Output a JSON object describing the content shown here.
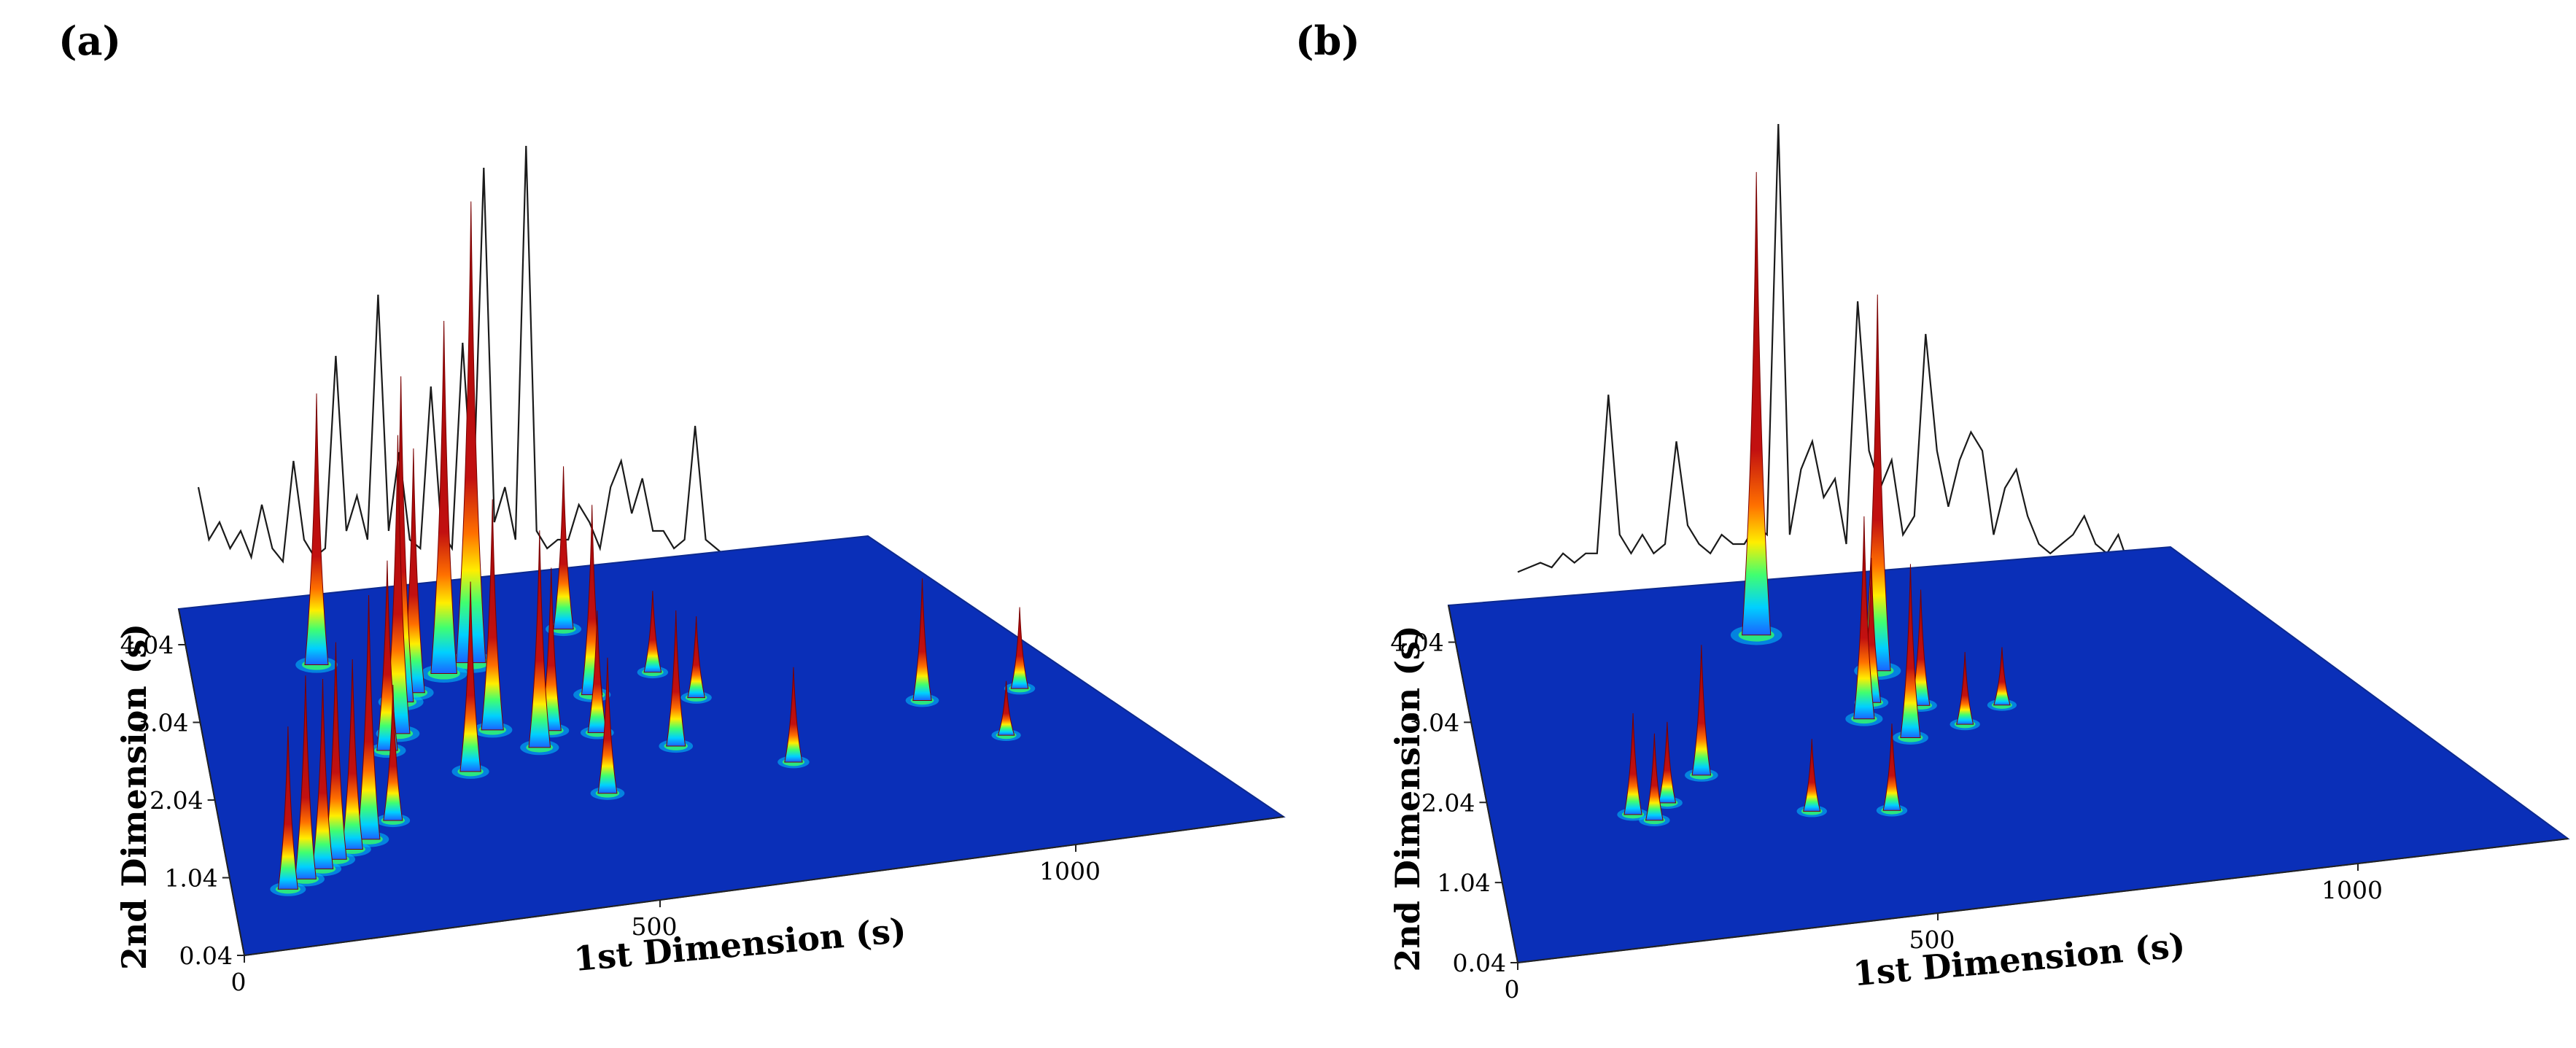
{
  "figure": {
    "panels": [
      {
        "label": "(a)"
      },
      {
        "label": "(b)"
      }
    ]
  },
  "colors": {
    "plane": "#0a2fb8",
    "plane_edge": "#0d2a8f",
    "peak": "#c21010",
    "ridge": "#d51818",
    "trace": "#1a1a1a"
  },
  "chart_data": [
    {
      "type": "surface3d",
      "panel": "(a)",
      "xlabel": "1st Dimension (s)",
      "ylabel": "2nd Dimension (s)",
      "x_ticks": [
        "0",
        "500",
        "1000"
      ],
      "x_tick_values": [
        0,
        500,
        1000
      ],
      "y_ticks": [
        "0.04",
        "1.04",
        "2.04",
        "3.04",
        "4.04"
      ],
      "y_tick_values": [
        0.04,
        1.04,
        2.04,
        3.04,
        4.04
      ],
      "xlim": [
        0,
        1250
      ],
      "ylim": [
        0.04,
        4.5
      ],
      "colormap": [
        "#0a2fb8",
        "#00c8ff",
        "#35ff6a",
        "#ffff00",
        "#ff7a00",
        "#c21010"
      ],
      "peaks": [
        {
          "x": 70,
          "y": 0.8,
          "h": 0.6
        },
        {
          "x": 95,
          "y": 0.9,
          "h": 0.75
        },
        {
          "x": 120,
          "y": 1.0,
          "h": 0.7
        },
        {
          "x": 140,
          "y": 1.1,
          "h": 0.8
        },
        {
          "x": 165,
          "y": 1.2,
          "h": 0.7
        },
        {
          "x": 190,
          "y": 1.3,
          "h": 0.9
        },
        {
          "x": 205,
          "y": 3.6,
          "h": 1.0
        },
        {
          "x": 230,
          "y": 1.5,
          "h": 0.5
        },
        {
          "x": 260,
          "y": 2.4,
          "h": 0.7
        },
        {
          "x": 285,
          "y": 2.6,
          "h": 1.1
        },
        {
          "x": 310,
          "y": 3.0,
          "h": 1.2
        },
        {
          "x": 335,
          "y": 3.1,
          "h": 0.9
        },
        {
          "x": 360,
          "y": 2.0,
          "h": 0.7
        },
        {
          "x": 395,
          "y": 3.3,
          "h": 1.3
        },
        {
          "x": 420,
          "y": 2.5,
          "h": 0.85
        },
        {
          "x": 445,
          "y": 3.4,
          "h": 1.7
        },
        {
          "x": 470,
          "y": 2.2,
          "h": 0.8
        },
        {
          "x": 500,
          "y": 2.4,
          "h": 0.6
        },
        {
          "x": 520,
          "y": 1.5,
          "h": 0.5
        },
        {
          "x": 560,
          "y": 2.3,
          "h": 0.45
        },
        {
          "x": 590,
          "y": 2.8,
          "h": 0.7
        },
        {
          "x": 620,
          "y": 3.7,
          "h": 0.6
        },
        {
          "x": 650,
          "y": 2.0,
          "h": 0.5
        },
        {
          "x": 700,
          "y": 3.0,
          "h": 0.3
        },
        {
          "x": 730,
          "y": 2.6,
          "h": 0.3
        },
        {
          "x": 780,
          "y": 1.6,
          "h": 0.35
        },
        {
          "x": 1020,
          "y": 2.2,
          "h": 0.45
        },
        {
          "x": 1070,
          "y": 1.6,
          "h": 0.2
        },
        {
          "x": 1160,
          "y": 2.2,
          "h": 0.3
        }
      ],
      "tic_trace": [
        0.22,
        0.1,
        0.14,
        0.08,
        0.12,
        0.06,
        0.18,
        0.08,
        0.05,
        0.28,
        0.1,
        0.06,
        0.08,
        0.52,
        0.12,
        0.2,
        0.1,
        0.66,
        0.12,
        0.3,
        0.1,
        0.08,
        0.45,
        0.12,
        0.08,
        0.55,
        0.18,
        0.95,
        0.14,
        0.22,
        0.1,
        1.0,
        0.12,
        0.08,
        0.1,
        0.1,
        0.18,
        0.14,
        0.08,
        0.22,
        0.28,
        0.16,
        0.24,
        0.12,
        0.12,
        0.08,
        0.1,
        0.36,
        0.1,
        0.08,
        0.06,
        0.05,
        0.06,
        0.05,
        0.04,
        0.05,
        0.05,
        0.06,
        0.08,
        0.05,
        0.05,
        0.04,
        0.04,
        0.04
      ]
    },
    {
      "type": "surface3d",
      "panel": "(b)",
      "xlabel": "1st Dimension (s)",
      "ylabel": "2nd Dimension (s)",
      "x_ticks": [
        "0",
        "500",
        "1000"
      ],
      "x_tick_values": [
        0,
        500,
        1000
      ],
      "y_ticks": [
        "0.04",
        "1.04",
        "2.04",
        "3.04",
        "4.04"
      ],
      "y_tick_values": [
        0.04,
        1.04,
        2.04,
        3.04,
        4.04
      ],
      "xlim": [
        0,
        1250
      ],
      "ylim": [
        0.04,
        4.5
      ],
      "colormap": [
        "#0a2fb8",
        "#00c8ff",
        "#35ff6a",
        "#ffff00",
        "#ff7a00",
        "#c21010"
      ],
      "peaks": [
        {
          "x": 190,
          "y": 1.7,
          "h": 0.35
        },
        {
          "x": 215,
          "y": 1.6,
          "h": 0.3
        },
        {
          "x": 240,
          "y": 1.8,
          "h": 0.28
        },
        {
          "x": 300,
          "y": 2.1,
          "h": 0.45
        },
        {
          "x": 420,
          "y": 1.5,
          "h": 0.25
        },
        {
          "x": 480,
          "y": 3.8,
          "h": 1.6
        },
        {
          "x": 520,
          "y": 1.4,
          "h": 0.3
        },
        {
          "x": 560,
          "y": 2.6,
          "h": 0.7
        },
        {
          "x": 585,
          "y": 2.8,
          "h": 0.5
        },
        {
          "x": 605,
          "y": 2.3,
          "h": 0.6
        },
        {
          "x": 625,
          "y": 3.2,
          "h": 1.3
        },
        {
          "x": 650,
          "y": 2.7,
          "h": 0.4
        },
        {
          "x": 690,
          "y": 2.4,
          "h": 0.25
        },
        {
          "x": 760,
          "y": 2.6,
          "h": 0.2
        }
      ],
      "tic_trace": [
        0.04,
        0.05,
        0.06,
        0.05,
        0.08,
        0.06,
        0.08,
        0.08,
        0.42,
        0.12,
        0.08,
        0.12,
        0.08,
        0.1,
        0.32,
        0.14,
        0.1,
        0.08,
        0.12,
        0.1,
        0.1,
        0.14,
        0.12,
        1.0,
        0.12,
        0.26,
        0.32,
        0.2,
        0.24,
        0.1,
        0.62,
        0.3,
        0.22,
        0.28,
        0.12,
        0.16,
        0.55,
        0.3,
        0.18,
        0.28,
        0.34,
        0.3,
        0.12,
        0.22,
        0.26,
        0.16,
        0.1,
        0.08,
        0.1,
        0.12,
        0.16,
        0.1,
        0.08,
        0.12,
        0.05,
        0.05,
        0.04
      ]
    }
  ]
}
